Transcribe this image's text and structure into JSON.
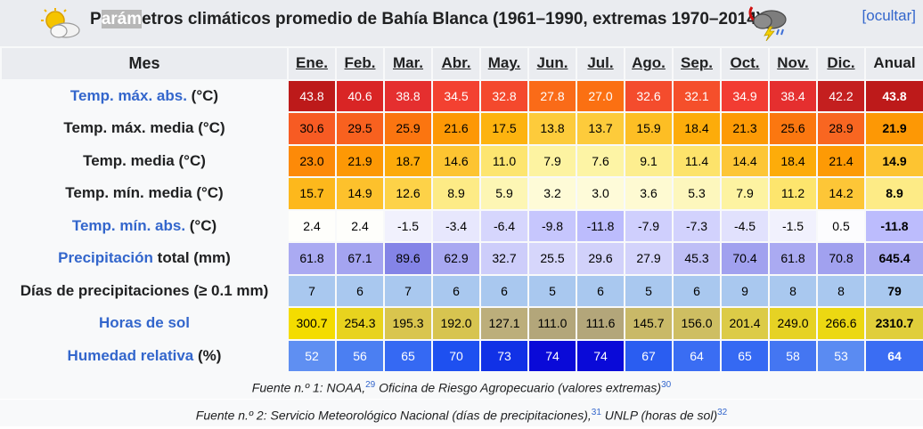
{
  "caption": {
    "title_pre": "P",
    "title_highlight": "arám",
    "title_post": "etros climáticos promedio de Bahía Blanca (1961–1990, extremas 1970–2014)",
    "toggle": "[ocultar]"
  },
  "header": {
    "mes": "Mes",
    "months": [
      "Ene.",
      "Feb.",
      "Mar.",
      "Abr.",
      "May.",
      "Jun.",
      "Jul.",
      "Ago.",
      "Sep.",
      "Oct.",
      "Nov.",
      "Dic."
    ],
    "anual": "Anual"
  },
  "rows": [
    {
      "link": "Temp. máx. abs.",
      "rest": " (°C)",
      "values": [
        "43.8",
        "40.6",
        "38.8",
        "34.5",
        "32.8",
        "27.8",
        "27.0",
        "32.6",
        "32.1",
        "34.9",
        "38.4",
        "42.2"
      ],
      "annual": "43.8",
      "colors": [
        "#bd1a1a",
        "#d92525",
        "#e52f2f",
        "#f34131",
        "#f4492d",
        "#fa6b18",
        "#fb7012",
        "#f44c2d",
        "#f54f2b",
        "#f23c32",
        "#e52f2f",
        "#c41f1f"
      ],
      "annual_color": "#bd1a1a",
      "text": "light"
    },
    {
      "link": "",
      "rest": "Temp. máx. media (°C)",
      "values": [
        "30.6",
        "29.5",
        "25.9",
        "21.6",
        "17.5",
        "13.8",
        "13.7",
        "15.9",
        "18.4",
        "21.3",
        "25.6",
        "28.9"
      ],
      "annual": "21.9",
      "colors": [
        "#f75b23",
        "#f8611f",
        "#fb7510",
        "#fd9805",
        "#fdb30f",
        "#fdcb3b",
        "#fdcb3b",
        "#fdbe24",
        "#fdac0a",
        "#fd9a05",
        "#fb7710",
        "#f86621"
      ],
      "annual_color": "#fd9805",
      "text": "dark"
    },
    {
      "link": "",
      "rest": "Temp. media (°C)",
      "values": [
        "23.0",
        "21.9",
        "18.7",
        "14.6",
        "11.0",
        "7.9",
        "7.6",
        "9.1",
        "11.4",
        "14.4",
        "18.4",
        "21.4"
      ],
      "annual": "14.9",
      "colors": [
        "#fd8a08",
        "#fd9805",
        "#fdaa0a",
        "#fdc431",
        "#fde570",
        "#fdf3a1",
        "#fdf4a5",
        "#fdee8f",
        "#fde36b",
        "#fdc636",
        "#fdac0a",
        "#fd9a05"
      ],
      "annual_color": "#fdc431",
      "text": "dark"
    },
    {
      "link": "",
      "rest": "Temp. mín. media (°C)",
      "values": [
        "15.7",
        "14.9",
        "12.6",
        "8.9",
        "5.9",
        "3.2",
        "3.0",
        "3.6",
        "5.3",
        "7.9",
        "11.2",
        "14.2"
      ],
      "annual": "8.9",
      "colors": [
        "#fdb81c",
        "#fdc12c",
        "#fdd248",
        "#fdeb86",
        "#fdf6b4",
        "#fefbd7",
        "#fefbd9",
        "#fefad2",
        "#fdf7bd",
        "#fdf3a1",
        "#fde56d",
        "#fdc637"
      ],
      "annual_color": "#fdeb86",
      "text": "dark"
    },
    {
      "link": "Temp. mín. abs.",
      "rest": " (°C)",
      "values": [
        "2.4",
        "2.4",
        "-1.5",
        "-3.4",
        "-6.4",
        "-9.8",
        "-11.8",
        "-7.9",
        "-7.3",
        "-4.5",
        "-1.5",
        "0.5"
      ],
      "annual": "-11.8",
      "colors": [
        "#fefefb",
        "#fefefb",
        "#f1f1fd",
        "#e7e7fd",
        "#d6d6fd",
        "#c6c6fd",
        "#bcbcfd",
        "#cfcffd",
        "#d2d2fd",
        "#e1e1fd",
        "#f1f1fd",
        "#fcfcfe"
      ],
      "annual_color": "#bcbcfd",
      "text": "dark"
    },
    {
      "link": "Precipitación",
      "rest": " total (mm)",
      "values": [
        "61.8",
        "67.1",
        "89.6",
        "62.9",
        "32.7",
        "25.5",
        "29.6",
        "27.9",
        "45.3",
        "70.4",
        "61.8",
        "70.8"
      ],
      "annual": "645.4",
      "colors": [
        "#aaaaf2",
        "#a4a4f0",
        "#8484e7",
        "#a8a8f1",
        "#cdcdfa",
        "#d6d6fb",
        "#d1d1fa",
        "#d3d3fb",
        "#bebef6",
        "#a1a1ef",
        "#aaaaf2",
        "#a1a1ef"
      ],
      "annual_color": "#aaaaf2",
      "text": "dark"
    },
    {
      "link": "",
      "rest": "Días de precipitaciones (≥ 0.1 mm)",
      "values": [
        "7",
        "6",
        "7",
        "6",
        "6",
        "5",
        "6",
        "5",
        "6",
        "9",
        "8",
        "8"
      ],
      "annual": "79",
      "colors": [
        "#a9c8ef",
        "#a9c8ef",
        "#a9c8ef",
        "#a9c8ef",
        "#a9c8ef",
        "#a9c8ef",
        "#a9c8ef",
        "#a9c8ef",
        "#a9c8ef",
        "#a9c8ef",
        "#a9c8ef",
        "#a9c8ef"
      ],
      "annual_color": "#a9c8ef",
      "text": "dark"
    },
    {
      "link": "Horas de sol",
      "rest": "",
      "values": [
        "300.7",
        "254.3",
        "195.3",
        "192.0",
        "127.1",
        "111.0",
        "111.6",
        "145.7",
        "156.0",
        "201.4",
        "249.0",
        "266.6"
      ],
      "annual": "2310.7",
      "colors": [
        "#f4dc00",
        "#e8d31e",
        "#d9c54e",
        "#d7c450",
        "#bcae7b",
        "#b3a67a",
        "#b3a67a",
        "#c9b968",
        "#cebe62",
        "#dccb47",
        "#e6d224",
        "#ecd812"
      ],
      "annual_color": "#e0ce3a",
      "text": "dark"
    },
    {
      "link": "Humedad relativa",
      "rest": " (%)",
      "values": [
        "52",
        "56",
        "65",
        "70",
        "73",
        "74",
        "74",
        "67",
        "64",
        "65",
        "58",
        "53"
      ],
      "annual": "64",
      "colors": [
        "#5f8ff2",
        "#4b7ff2",
        "#3569f3",
        "#1e50f0",
        "#1131e6",
        "#0a0ad8",
        "#0a0ad8",
        "#2a5df1",
        "#3a6df3",
        "#3569f3",
        "#4476f2",
        "#5a8bf2"
      ],
      "annual_color": "#3a6df3",
      "text": "light"
    }
  ],
  "sources": [
    {
      "text1": "Fuente n.º 1: NOAA,",
      "ref1": "29",
      "text2": "  Oficina de Riesgo Agropecuario (valores extremas)",
      "ref2": "30"
    },
    {
      "text1": "Fuente n.º 2: Servicio Meteorológico Nacional (días de precipitaciones),",
      "ref1": "31",
      "text2": "  UNLP (horas de sol)",
      "ref2": "32"
    }
  ]
}
